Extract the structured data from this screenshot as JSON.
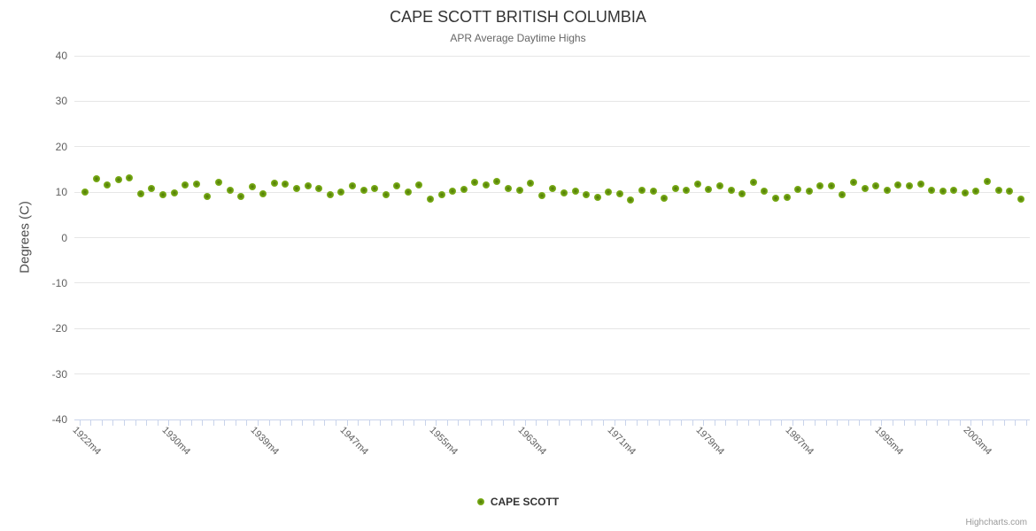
{
  "chart": {
    "title": "CAPE SCOTT BRITISH COLUMBIA",
    "subtitle": "APR Average Daytime Highs",
    "y_axis_title": "Degrees (C)",
    "legend": {
      "label": "CAPE SCOTT",
      "marker_icon": "circle-marker-icon"
    },
    "credit": "Highcharts.com",
    "colors": {
      "series_green": "#8bbc21",
      "grid": "#e6e6e6",
      "axis": "#c9d4eb",
      "title_text": "#333333",
      "subtitle_text": "#666666",
      "axis_label_text": "#606060",
      "credit_text": "#999999"
    }
  },
  "chart_data": {
    "type": "scatter",
    "title": "CAPE SCOTT BRITISH COLUMBIA",
    "subtitle": "APR Average Daytime Highs",
    "xlabel": "",
    "ylabel": "Degrees (C)",
    "ylim": [
      -40,
      40
    ],
    "yticks": [
      40,
      30,
      20,
      10,
      0,
      -10,
      -20,
      -30,
      -40
    ],
    "grid": "horizontal",
    "legend_position": "bottom-center",
    "x_tick_label_indices": [
      0,
      8,
      16,
      24,
      32,
      40,
      48,
      56,
      64,
      72,
      80
    ],
    "x_tick_labels_visible": [
      "1922m4",
      "1930m4",
      "1939m4",
      "1947m4",
      "1955m4",
      "1963m4",
      "1971m4",
      "1979m4",
      "1987m4",
      "1995m4",
      "2003m4"
    ],
    "categories": [
      "1922m4",
      "1923m4",
      "1924m4",
      "1925m4",
      "1926m4",
      "1927m4",
      "1928m4",
      "1929m4",
      "1930m4",
      "1932m4",
      "1933m4",
      "1934m4",
      "1935m4",
      "1936m4",
      "1937m4",
      "1938m4",
      "1939m4",
      "1940m4",
      "1941m4",
      "1942m4",
      "1943m4",
      "1944m4",
      "1945m4",
      "1946m4",
      "1947m4",
      "1948m4",
      "1949m4",
      "1950m4",
      "1951m4",
      "1952m4",
      "1953m4",
      "1954m4",
      "1955m4",
      "1956m4",
      "1957m4",
      "1958m4",
      "1959m4",
      "1960m4",
      "1961m4",
      "1962m4",
      "1963m4",
      "1964m4",
      "1965m4",
      "1966m4",
      "1967m4",
      "1968m4",
      "1969m4",
      "1970m4",
      "1971m4",
      "1972m4",
      "1973m4",
      "1974m4",
      "1975m4",
      "1976m4",
      "1977m4",
      "1978m4",
      "1979m4",
      "1980m4",
      "1981m4",
      "1982m4",
      "1983m4",
      "1984m4",
      "1985m4",
      "1986m4",
      "1987m4",
      "1988m4",
      "1989m4",
      "1990m4",
      "1991m4",
      "1992m4",
      "1993m4",
      "1994m4",
      "1995m4",
      "1996m4",
      "1997m4",
      "1998m4",
      "1999m4",
      "2000m4",
      "2001m4",
      "2002m4",
      "2003m4",
      "2004m4",
      "2005m4",
      "2006m4",
      "2007m4"
    ],
    "series": [
      {
        "name": "CAPE SCOTT",
        "color": "#8bbc21",
        "values": [
          10.0,
          13.0,
          11.5,
          12.8,
          13.1,
          9.7,
          10.9,
          9.4,
          9.8,
          11.5,
          11.7,
          9.1,
          12.1,
          10.5,
          9.1,
          11.1,
          9.7,
          11.9,
          11.8,
          10.8,
          11.3,
          10.9,
          9.4,
          10.1,
          11.3,
          10.5,
          10.9,
          9.4,
          11.3,
          10.1,
          11.5,
          8.4,
          9.4,
          10.3,
          10.7,
          12.1,
          11.6,
          12.4,
          10.9,
          10.4,
          11.9,
          9.2,
          10.9,
          9.9,
          10.3,
          9.4,
          8.9,
          10.1,
          9.7,
          8.3,
          10.5,
          10.3,
          8.7,
          10.9,
          10.4,
          11.7,
          10.7,
          11.3,
          10.5,
          9.6,
          12.1,
          10.3,
          8.7,
          8.9,
          10.7,
          10.3,
          11.3,
          11.3,
          9.4,
          12.1,
          10.9,
          11.3,
          10.5,
          11.5,
          11.3,
          11.7,
          10.5,
          10.3,
          10.5,
          9.9,
          10.2,
          12.3,
          10.4,
          10.2,
          8.4
        ]
      }
    ]
  }
}
